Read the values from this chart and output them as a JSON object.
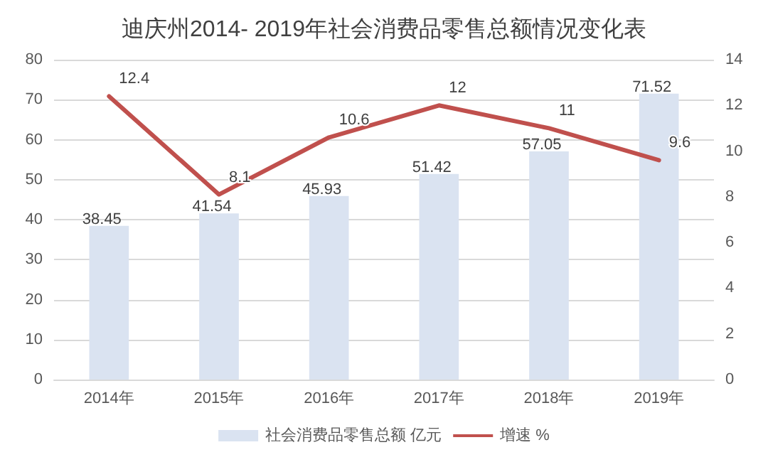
{
  "chart_data": {
    "type": "bar",
    "title": "迪庆州2014- 2019年社会消费品零售总额情况变化表",
    "categories": [
      "2014年",
      "2015年",
      "2016年",
      "2017年",
      "2018年",
      "2019年"
    ],
    "series": [
      {
        "name": "社会消费品零售总额 亿元",
        "color": "#dae3f1",
        "values": [
          38.45,
          41.54,
          45.93,
          51.42,
          57.05,
          71.52
        ]
      },
      {
        "name": "增速 %",
        "type": "line",
        "axis": "y2",
        "color": "#c0504d",
        "values": [
          12.4,
          8.1,
          10.6,
          12,
          11,
          9.6
        ]
      }
    ],
    "ylim": [
      0,
      80
    ],
    "yticks": [
      0,
      10,
      20,
      30,
      40,
      50,
      60,
      70,
      80
    ],
    "y2lim": [
      0,
      14
    ],
    "y2ticks": [
      0,
      2,
      4,
      6,
      8,
      10,
      12,
      14
    ],
    "grid": "y",
    "legend": "bottom",
    "data_labels": true,
    "marker": "none",
    "line_style": "solid"
  }
}
